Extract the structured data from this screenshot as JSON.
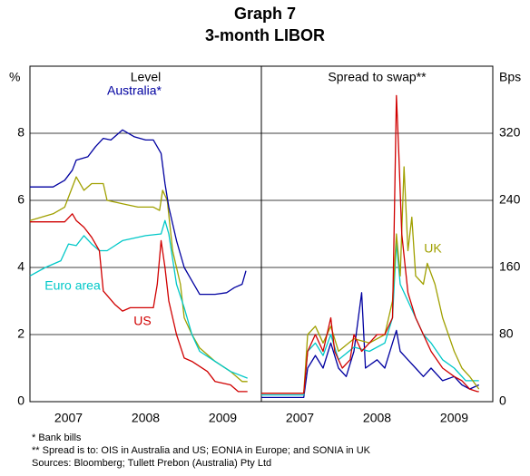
{
  "title": "Graph 7",
  "subtitle": "3-month LIBOR",
  "footnotes": [
    "*  Bank bills",
    "** Spread is to: OIS in Australia and US; EONIA in Europe; and SONIA in UK",
    "Sources: Bloomberg; Tullett Prebon (Australia) Pty Ltd"
  ],
  "chart_data": [
    {
      "type": "line",
      "title": "Level",
      "y_label": "%",
      "yaxis_side": "left",
      "xlim": [
        2007,
        2010
      ],
      "xticks": [
        {
          "value": 2007.5,
          "label": "2007"
        },
        {
          "value": 2008.5,
          "label": "2008"
        },
        {
          "value": 2009.5,
          "label": "2009"
        }
      ],
      "ylim": [
        0,
        10
      ],
      "yticks": [
        0,
        2,
        4,
        6,
        8
      ],
      "grid": true,
      "series": [
        {
          "color": "#a0a000",
          "x": [
            2007.0,
            2007.3,
            2007.45,
            2007.6,
            2007.7,
            2007.8,
            2007.95,
            2008.0,
            2008.2,
            2008.4,
            2008.6,
            2008.68,
            2008.72,
            2008.78,
            2008.85,
            2008.95,
            2009.0,
            2009.1,
            2009.2,
            2009.4,
            2009.6,
            2009.75,
            2009.82
          ],
          "values": [
            5.4,
            5.6,
            5.8,
            6.7,
            6.3,
            6.5,
            6.5,
            6.0,
            5.9,
            5.8,
            5.8,
            5.7,
            6.3,
            6.0,
            4.5,
            3.5,
            2.5,
            2.0,
            1.6,
            1.2,
            0.9,
            0.6,
            0.6
          ]
        },
        {
          "name": "Euro area",
          "color": "#00c8c8",
          "x": [
            2007.0,
            2007.2,
            2007.4,
            2007.5,
            2007.6,
            2007.7,
            2007.8,
            2007.9,
            2008.0,
            2008.2,
            2008.5,
            2008.7,
            2008.75,
            2008.8,
            2008.9,
            2009.0,
            2009.1,
            2009.2,
            2009.4,
            2009.6,
            2009.82
          ],
          "values": [
            3.75,
            4.0,
            4.2,
            4.7,
            4.65,
            4.95,
            4.7,
            4.5,
            4.5,
            4.8,
            4.95,
            5.0,
            5.4,
            5.0,
            3.5,
            2.8,
            2.0,
            1.5,
            1.2,
            0.9,
            0.7
          ]
        },
        {
          "name": "US",
          "color": "#d00000",
          "x": [
            2007.0,
            2007.45,
            2007.55,
            2007.6,
            2007.7,
            2007.8,
            2007.9,
            2007.95,
            2008.1,
            2008.2,
            2008.3,
            2008.4,
            2008.6,
            2008.65,
            2008.7,
            2008.75,
            2008.8,
            2008.9,
            2009.0,
            2009.1,
            2009.3,
            2009.4,
            2009.6,
            2009.7,
            2009.82
          ],
          "values": [
            5.36,
            5.36,
            5.6,
            5.4,
            5.2,
            4.9,
            4.5,
            3.3,
            2.9,
            2.7,
            2.8,
            2.8,
            2.8,
            3.5,
            4.8,
            4.0,
            3.0,
            2.0,
            1.3,
            1.2,
            0.9,
            0.6,
            0.5,
            0.3,
            0.3
          ]
        },
        {
          "name": "Australia*",
          "color": "#0000a0",
          "x": [
            2007.0,
            2007.3,
            2007.45,
            2007.55,
            2007.6,
            2007.75,
            2007.85,
            2007.95,
            2008.05,
            2008.2,
            2008.35,
            2008.5,
            2008.6,
            2008.7,
            2008.75,
            2008.8,
            2008.9,
            2009.0,
            2009.1,
            2009.2,
            2009.4,
            2009.55,
            2009.65,
            2009.75,
            2009.8
          ],
          "values": [
            6.4,
            6.4,
            6.6,
            6.9,
            7.2,
            7.3,
            7.6,
            7.85,
            7.8,
            8.1,
            7.9,
            7.8,
            7.8,
            7.4,
            6.5,
            5.8,
            4.8,
            4.0,
            3.6,
            3.2,
            3.2,
            3.25,
            3.4,
            3.5,
            3.9
          ]
        }
      ]
    },
    {
      "type": "line",
      "title": "Spread to swap**",
      "y_label": "Bps",
      "yaxis_side": "right",
      "xlim": [
        2007,
        2010
      ],
      "xticks": [
        {
          "value": 2007.5,
          "label": "2007"
        },
        {
          "value": 2008.5,
          "label": "2008"
        },
        {
          "value": 2009.5,
          "label": "2009"
        }
      ],
      "ylim": [
        0,
        400
      ],
      "yticks": [
        0,
        80,
        160,
        240,
        320
      ],
      "grid": true,
      "series": [
        {
          "color": "#0000a0",
          "x": [
            2007.0,
            2007.55,
            2007.6,
            2007.7,
            2007.8,
            2007.9,
            2008.0,
            2008.1,
            2008.2,
            2008.3,
            2008.35,
            2008.5,
            2008.6,
            2008.7,
            2008.75,
            2008.8,
            2008.9,
            2009.0,
            2009.1,
            2009.2,
            2009.35,
            2009.5,
            2009.6,
            2009.7,
            2009.82
          ],
          "values": [
            5,
            5,
            40,
            55,
            40,
            70,
            40,
            30,
            60,
            130,
            40,
            50,
            40,
            70,
            85,
            60,
            50,
            40,
            30,
            40,
            25,
            30,
            20,
            15,
            20
          ]
        },
        {
          "color": "#00c8c8",
          "x": [
            2007.0,
            2007.55,
            2007.6,
            2007.7,
            2007.8,
            2007.9,
            2008.0,
            2008.2,
            2008.4,
            2008.6,
            2008.7,
            2008.75,
            2008.8,
            2008.9,
            2009.0,
            2009.1,
            2009.2,
            2009.35,
            2009.5,
            2009.65,
            2009.82
          ],
          "values": [
            8,
            8,
            60,
            70,
            55,
            80,
            50,
            65,
            60,
            70,
            100,
            190,
            140,
            120,
            100,
            80,
            70,
            50,
            40,
            25,
            25
          ]
        },
        {
          "name": "UK",
          "color": "#a0a000",
          "x": [
            2007.0,
            2007.55,
            2007.6,
            2007.7,
            2007.8,
            2007.9,
            2008.0,
            2008.2,
            2008.4,
            2008.6,
            2008.7,
            2008.75,
            2008.8,
            2008.85,
            2008.9,
            2008.95,
            2009.0,
            2009.1,
            2009.15,
            2009.25,
            2009.35,
            2009.5,
            2009.6,
            2009.7,
            2009.82
          ],
          "values": [
            10,
            10,
            80,
            90,
            70,
            90,
            60,
            75,
            70,
            80,
            120,
            200,
            150,
            280,
            180,
            220,
            150,
            140,
            165,
            140,
            100,
            60,
            40,
            30,
            15
          ]
        },
        {
          "color": "#d00000",
          "x": [
            2007.0,
            2007.55,
            2007.6,
            2007.7,
            2007.8,
            2007.9,
            2007.95,
            2008.05,
            2008.15,
            2008.2,
            2008.3,
            2008.4,
            2008.5,
            2008.6,
            2008.7,
            2008.72,
            2008.75,
            2008.78,
            2008.82,
            2008.9,
            2009.0,
            2009.1,
            2009.2,
            2009.35,
            2009.5,
            2009.6,
            2009.7,
            2009.8,
            2009.82
          ],
          "values": [
            10,
            10,
            60,
            80,
            60,
            100,
            60,
            40,
            50,
            80,
            60,
            70,
            80,
            80,
            100,
            200,
            365,
            300,
            200,
            130,
            100,
            80,
            60,
            40,
            30,
            25,
            15,
            12,
            12
          ]
        }
      ]
    }
  ]
}
